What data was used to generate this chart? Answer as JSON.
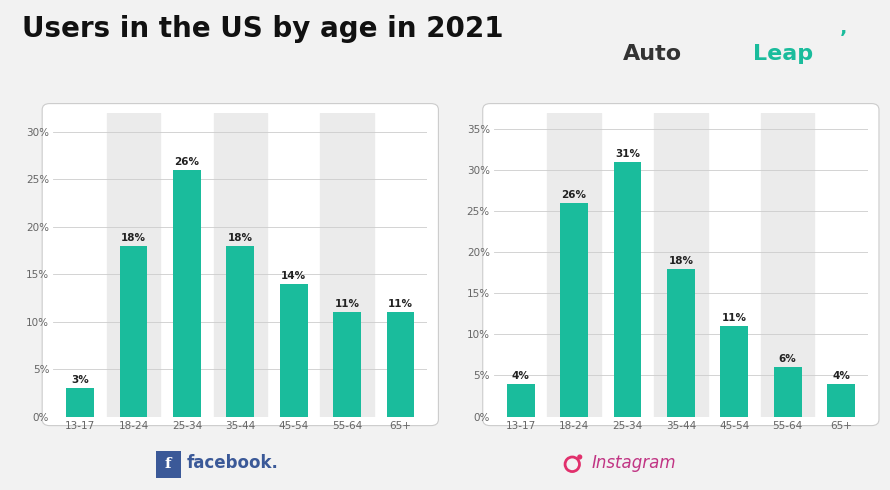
{
  "title": "Users in the US by age in 2021",
  "title_fontsize": 20,
  "title_fontweight": "bold",
  "background_color": "#f2f2f2",
  "panel_color": "#ffffff",
  "bar_color": "#1abc9c",
  "categories": [
    "13-17",
    "18-24",
    "25-34",
    "35-44",
    "45-54",
    "55-64",
    "65+"
  ],
  "facebook_values": [
    3,
    18,
    26,
    18,
    14,
    11,
    11
  ],
  "instagram_values": [
    4,
    26,
    31,
    18,
    11,
    6,
    4
  ],
  "facebook_ylim": [
    0,
    32
  ],
  "instagram_ylim": [
    0,
    37
  ],
  "facebook_yticks": [
    0,
    5,
    10,
    15,
    20,
    25,
    30
  ],
  "instagram_yticks": [
    0,
    5,
    10,
    15,
    20,
    25,
    30,
    35
  ],
  "autoleap_auto_color": "#333333",
  "autoleap_leap_color": "#1abc9c",
  "facebook_label": "facebook.",
  "instagram_label": "Instagram",
  "facebook_label_color": "#3b5998",
  "facebook_box_color": "#3b5998",
  "instagram_label_color": "#c13584",
  "label_fontsize": 12,
  "bar_label_fontsize": 7.5,
  "tick_fontsize": 7.5,
  "alt_col_color": "#ebebeb"
}
